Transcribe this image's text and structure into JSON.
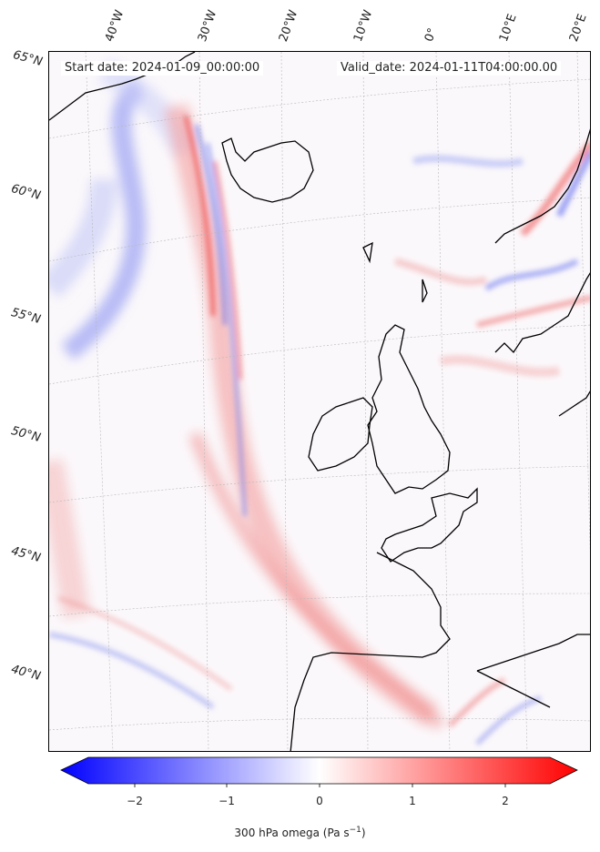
{
  "header": {
    "start_date": "Start date: 2024-01-09_00:00:00",
    "valid_date": "Valid_date: 2024-01-11T04:00:00.00"
  },
  "longitude_labels": [
    "40°W",
    "30°W",
    "20°W",
    "10°W",
    "0°",
    "10°E",
    "20°E"
  ],
  "latitude_labels": [
    "65°N",
    "60°N",
    "55°N",
    "50°N",
    "45°N",
    "40°N"
  ],
  "colorbar": {
    "ticks": [
      "−2",
      "−1",
      "0",
      "1",
      "2"
    ],
    "label": "300 hPa omega (Pa s",
    "label_sup": "−1",
    "label_end": ")",
    "colors": {
      "min": "#0000ff",
      "mid": "#ffffff",
      "max": "#ff0000"
    }
  }
}
